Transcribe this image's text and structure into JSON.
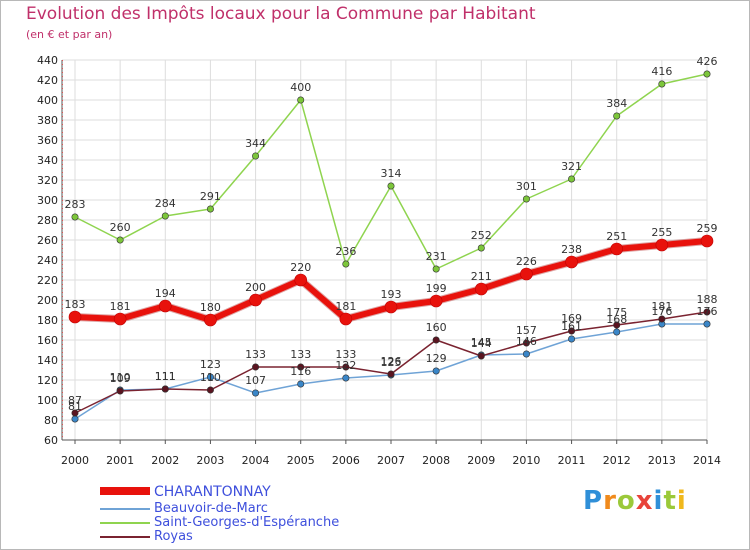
{
  "header": {
    "title": "Evolution des Impôts locaux pour la Commune par Habitant",
    "subtitle": "(en € et par an)"
  },
  "logo": {
    "letters": [
      "P",
      "r",
      "o",
      "x",
      "i",
      "t",
      "i"
    ],
    "colors": [
      "#2f8fd8",
      "#f08a1c",
      "#9bc93a",
      "#e8433a",
      "#2f8fd8",
      "#9bc93a",
      "#f0b81c"
    ]
  },
  "chart_data": {
    "type": "line",
    "title": "Evolution des Impôts locaux pour la Commune par Habitant",
    "subtitle": "(en € et par an)",
    "x": [
      "2000",
      "2001",
      "2002",
      "2003",
      "2004",
      "2005",
      "2006",
      "2007",
      "2008",
      "2009",
      "2010",
      "2011",
      "2012",
      "2013",
      "2014"
    ],
    "ylim": [
      60,
      440
    ],
    "yticks": [
      60,
      80,
      100,
      120,
      140,
      160,
      180,
      200,
      220,
      240,
      260,
      280,
      300,
      320,
      340,
      360,
      380,
      400,
      420,
      440
    ],
    "grid": true,
    "legend_position": "bottom-left",
    "series": [
      {
        "name": "Saint-Georges-d'Espéranche",
        "color": "#8fd44f",
        "marker_color": "#7cc63a",
        "width": 1.5,
        "values": [
          283,
          260,
          284,
          291,
          344,
          400,
          236,
          314,
          231,
          252,
          301,
          321,
          384,
          416,
          426
        ],
        "labels": [
          "283",
          "260",
          "284",
          "291",
          "344",
          "400",
          "236",
          "314",
          "231",
          "252",
          "301",
          "321",
          "384",
          "416",
          "426"
        ]
      },
      {
        "name": "Beauvoir-de-Marc",
        "color": "#6fa3d6",
        "marker_color": "#3a86c8",
        "width": 1.5,
        "values": [
          81,
          110,
          111,
          123,
          107,
          116,
          122,
          125,
          129,
          145,
          146,
          161,
          168,
          176,
          176
        ],
        "labels": [
          "81",
          "110",
          "111",
          "123",
          "107",
          "116",
          "122",
          "125",
          "129",
          "145",
          "146",
          "161",
          "168",
          "176",
          "176"
        ]
      },
      {
        "name": "Royas",
        "color": "#7a2330",
        "marker_color": "#5a1420",
        "width": 1.5,
        "values": [
          87,
          109,
          111,
          110,
          133,
          133,
          133,
          126,
          160,
          144,
          157,
          169,
          175,
          181,
          188
        ],
        "labels": [
          "87",
          "109",
          "111",
          "110",
          "133",
          "133",
          "133",
          "126",
          "160",
          "144",
          "157",
          "169",
          "175",
          "181",
          "188"
        ]
      },
      {
        "name": "CHARANTONNAY",
        "color": "#e8120c",
        "marker_color": "#e8120c",
        "width": 6,
        "values": [
          183,
          181,
          194,
          180,
          200,
          220,
          181,
          193,
          199,
          211,
          226,
          238,
          251,
          255,
          259
        ],
        "labels": [
          "183",
          "181",
          "194",
          "180",
          "200",
          "220",
          "181",
          "193",
          "199",
          "211",
          "226",
          "238",
          "251",
          "255",
          "259"
        ]
      }
    ],
    "legend": [
      "CHARANTONNAY",
      "Beauvoir-de-Marc",
      "Saint-Georges-d'Espéranche",
      "Royas"
    ]
  }
}
